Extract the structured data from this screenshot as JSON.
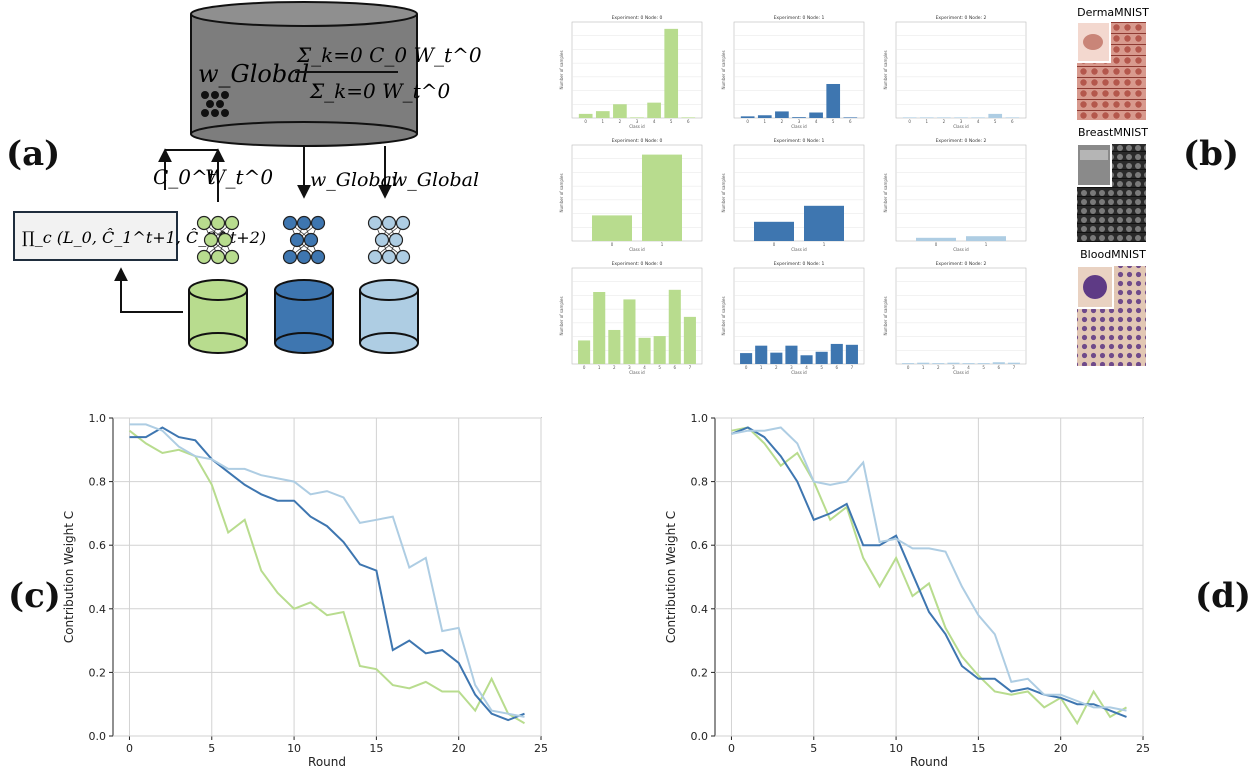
{
  "labels": {
    "a": "(a)",
    "b": "(b)",
    "c": "(c)",
    "d": "(d)"
  },
  "colors": {
    "green": "#b8dc8e",
    "dark_blue": "#3e76b0",
    "light_blue": "#aecde3",
    "gray": "#7d7d7d",
    "node_dark": "#111111"
  },
  "diagram": {
    "formula_lhs": "w_Global",
    "formula_num": "Σ_k=0 C_0 W_t^0",
    "formula_den": "Σ_k=0 W_t^0",
    "up_label_c": "C_0^t",
    "up_label_w": "W_t^0",
    "down_label": "w_Global",
    "product_box": "∏_c (L_0, Ĉ_1^t+1, Ĉ_2^t+2)"
  },
  "datasets": [
    "DermaMNIST",
    "BreastMNIST",
    "BloodMNIST"
  ],
  "chart_data": [
    {
      "type": "bar",
      "grid": true,
      "node_titles": [
        "Experiment: 0 Node: 0",
        "Experiment: 0 Node: 1",
        "Experiment: 0 Node: 2"
      ],
      "xlabel": "Class id",
      "ylabel": "Number of samples",
      "rows": [
        {
          "categories": [
            0,
            1,
            2,
            3,
            4,
            5,
            6
          ],
          "series": [
            [
              150,
              250,
              500,
              10,
              560,
              3250,
              20
            ],
            [
              60,
              100,
              240,
              30,
              200,
              1240,
              20
            ],
            [
              0,
              0,
              0,
              0,
              0,
              150,
              0
            ]
          ],
          "ylim": [
            0,
            3500
          ]
        },
        {
          "categories": [
            0,
            1
          ],
          "series": [
            [
              80,
              270
            ],
            [
              60,
              110
            ],
            [
              10,
              15
            ]
          ],
          "ylim": [
            0,
            300
          ]
        },
        {
          "categories": [
            0,
            1,
            2,
            3,
            4,
            5,
            6,
            7
          ],
          "series": [
            [
              540,
              1650,
              780,
              1480,
              600,
              640,
              1700,
              1080
            ],
            [
              250,
              420,
              260,
              420,
              200,
              280,
              460,
              440
            ],
            [
              20,
              30,
              20,
              30,
              20,
              20,
              40,
              30
            ]
          ],
          "ylim": [
            0,
            2200
          ]
        }
      ]
    },
    {
      "type": "line",
      "xlabel": "Round",
      "ylabel": "Contribution Weight C",
      "xlim": [
        -1,
        25
      ],
      "ylim": [
        0,
        1.0
      ],
      "grid": true,
      "xticks": [
        0,
        5,
        10,
        15,
        20,
        25
      ],
      "yticks": [
        0.0,
        0.2,
        0.4,
        0.6,
        0.8,
        1.0
      ],
      "x": [
        0,
        1,
        2,
        3,
        4,
        5,
        6,
        7,
        8,
        9,
        10,
        11,
        12,
        13,
        14,
        15,
        16,
        17,
        18,
        19,
        20,
        21,
        22,
        23,
        24
      ],
      "series": [
        {
          "color": "#b8dc8e",
          "values": [
            0.96,
            0.92,
            0.89,
            0.9,
            0.88,
            0.79,
            0.64,
            0.68,
            0.52,
            0.45,
            0.4,
            0.42,
            0.38,
            0.39,
            0.22,
            0.21,
            0.16,
            0.15,
            0.17,
            0.14,
            0.14,
            0.08,
            0.18,
            0.07,
            0.04
          ]
        },
        {
          "color": "#3e76b0",
          "values": [
            0.94,
            0.94,
            0.97,
            0.94,
            0.93,
            0.87,
            0.83,
            0.79,
            0.76,
            0.74,
            0.74,
            0.69,
            0.66,
            0.61,
            0.54,
            0.52,
            0.27,
            0.3,
            0.26,
            0.27,
            0.23,
            0.13,
            0.07,
            0.05,
            0.07
          ]
        },
        {
          "color": "#aecde3",
          "values": [
            0.98,
            0.98,
            0.96,
            0.91,
            0.88,
            0.87,
            0.84,
            0.84,
            0.82,
            0.81,
            0.8,
            0.76,
            0.77,
            0.75,
            0.67,
            0.68,
            0.69,
            0.53,
            0.56,
            0.33,
            0.34,
            0.16,
            0.08,
            0.07,
            0.06
          ]
        }
      ]
    },
    {
      "type": "line",
      "xlabel": "Round",
      "ylabel": "Contribution Weight C",
      "xlim": [
        -1,
        25
      ],
      "ylim": [
        0,
        1.0
      ],
      "grid": true,
      "xticks": [
        0,
        5,
        10,
        15,
        20,
        25
      ],
      "yticks": [
        0.0,
        0.2,
        0.4,
        0.6,
        0.8,
        1.0
      ],
      "x": [
        0,
        1,
        2,
        3,
        4,
        5,
        6,
        7,
        8,
        9,
        10,
        11,
        12,
        13,
        14,
        15,
        16,
        17,
        18,
        19,
        20,
        21,
        22,
        23,
        24
      ],
      "series": [
        {
          "color": "#b8dc8e",
          "values": [
            0.96,
            0.97,
            0.92,
            0.85,
            0.89,
            0.8,
            0.68,
            0.72,
            0.56,
            0.47,
            0.56,
            0.44,
            0.48,
            0.34,
            0.25,
            0.19,
            0.14,
            0.13,
            0.14,
            0.09,
            0.12,
            0.04,
            0.14,
            0.06,
            0.09
          ]
        },
        {
          "color": "#3e76b0",
          "values": [
            0.95,
            0.97,
            0.94,
            0.88,
            0.8,
            0.68,
            0.7,
            0.73,
            0.6,
            0.6,
            0.63,
            0.51,
            0.39,
            0.32,
            0.22,
            0.18,
            0.18,
            0.14,
            0.15,
            0.13,
            0.12,
            0.1,
            0.1,
            0.08,
            0.06
          ]
        },
        {
          "color": "#aecde3",
          "values": [
            0.95,
            0.96,
            0.96,
            0.97,
            0.92,
            0.8,
            0.79,
            0.8,
            0.86,
            0.61,
            0.62,
            0.59,
            0.59,
            0.58,
            0.47,
            0.38,
            0.32,
            0.17,
            0.18,
            0.13,
            0.13,
            0.11,
            0.09,
            0.09,
            0.08
          ]
        }
      ]
    }
  ]
}
